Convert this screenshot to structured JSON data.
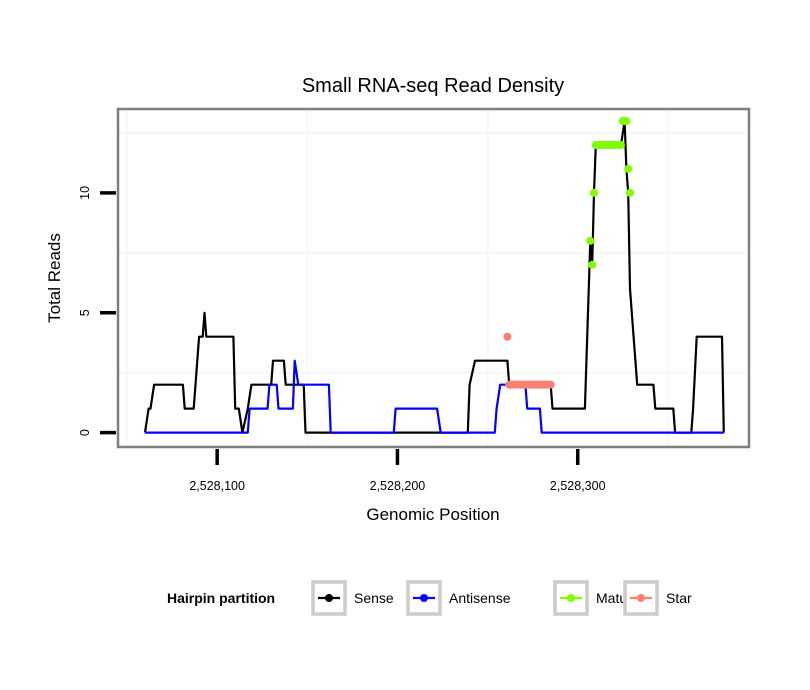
{
  "chart_data": {
    "type": "line",
    "title": "Small RNA-seq Read Density",
    "xlabel": "Genomic Position",
    "ylabel": "Total Reads",
    "xlim": [
      2528045,
      2528395
    ],
    "ylim": [
      -0.6,
      13.5
    ],
    "x_ticks": [
      2528100,
      2528200,
      2528300
    ],
    "x_tick_labels": [
      "2,528,100",
      "2,528,200",
      "2,528,300"
    ],
    "y_ticks": [
      0,
      5,
      10
    ],
    "y_tick_labels": [
      "0",
      "5",
      "10"
    ],
    "grid": true,
    "legend": {
      "title": "Hairpin partition",
      "position": "bottom",
      "entries": [
        {
          "name": "Sense",
          "color": "#000000"
        },
        {
          "name": "Antisense",
          "color": "#0000ff"
        },
        {
          "name": "Mature",
          "color": "#7fff00"
        },
        {
          "name": "Star",
          "color": "#fa8072"
        }
      ]
    },
    "series": [
      {
        "name": "Sense",
        "color": "#000000",
        "style": "line",
        "x": [
          2528060,
          2528062,
          2528063,
          2528065,
          2528081,
          2528082,
          2528087,
          2528089,
          2528090,
          2528092,
          2528093,
          2528094,
          2528109,
          2528110,
          2528112,
          2528114,
          2528117,
          2528119,
          2528130,
          2528131,
          2528137,
          2528138,
          2528148,
          2528149,
          2528239,
          2528240,
          2528243,
          2528261,
          2528262,
          2528285,
          2528286,
          2528304,
          2528307,
          2528308,
          2528309,
          2528310,
          2528324,
          2528326,
          2528327,
          2528328,
          2528329,
          2528333,
          2528342,
          2528343,
          2528353,
          2528354,
          2528363,
          2528364,
          2528366,
          2528380,
          2528381
        ],
        "y": [
          0,
          1,
          1,
          2,
          2,
          1,
          1,
          3,
          4,
          4,
          5,
          4,
          4,
          1,
          1,
          0,
          1,
          2,
          2,
          3,
          3,
          2,
          2,
          0,
          0,
          2,
          3,
          3,
          2,
          2,
          1,
          1,
          8,
          7,
          10,
          12,
          12,
          13,
          11,
          10,
          6,
          2,
          2,
          1,
          1,
          0,
          0,
          1,
          4,
          4,
          0
        ]
      },
      {
        "name": "Antisense",
        "color": "#0000ff",
        "style": "line",
        "x": [
          2528060,
          2528117,
          2528118,
          2528128,
          2528129,
          2528133,
          2528134,
          2528142,
          2528143,
          2528145,
          2528162,
          2528163,
          2528198,
          2528199,
          2528222,
          2528224,
          2528254,
          2528255,
          2528257,
          2528271,
          2528272,
          2528279,
          2528280,
          2528381
        ],
        "y": [
          0,
          0,
          1,
          1,
          2,
          2,
          1,
          1,
          3,
          2,
          2,
          0,
          0,
          1,
          1,
          0,
          0,
          1,
          2,
          2,
          1,
          1,
          0,
          0
        ]
      },
      {
        "name": "Mature",
        "color": "#7fff00",
        "style": "points",
        "x": [
          2528307,
          2528308,
          2528309,
          2528310,
          2528311,
          2528312,
          2528313,
          2528314,
          2528315,
          2528316,
          2528317,
          2528318,
          2528319,
          2528320,
          2528321,
          2528322,
          2528323,
          2528324,
          2528325,
          2528326,
          2528327,
          2528328,
          2528329
        ],
        "y": [
          8,
          7,
          10,
          12,
          12,
          12,
          12,
          12,
          12,
          12,
          12,
          12,
          12,
          12,
          12,
          12,
          12,
          12,
          13,
          13,
          13,
          11,
          10
        ]
      },
      {
        "name": "Star",
        "color": "#fa8072",
        "style": "points",
        "x": [
          2528261,
          2528262,
          2528263,
          2528264,
          2528265,
          2528266,
          2528267,
          2528268,
          2528269,
          2528270,
          2528271,
          2528272,
          2528273,
          2528274,
          2528275,
          2528276,
          2528277,
          2528278,
          2528279,
          2528280,
          2528281,
          2528282,
          2528283,
          2528284,
          2528285
        ],
        "y": [
          4,
          2,
          2,
          2,
          2,
          2,
          2,
          2,
          2,
          2,
          2,
          2,
          2,
          2,
          2,
          2,
          2,
          2,
          2,
          2,
          2,
          2,
          2,
          2,
          2
        ]
      }
    ]
  }
}
